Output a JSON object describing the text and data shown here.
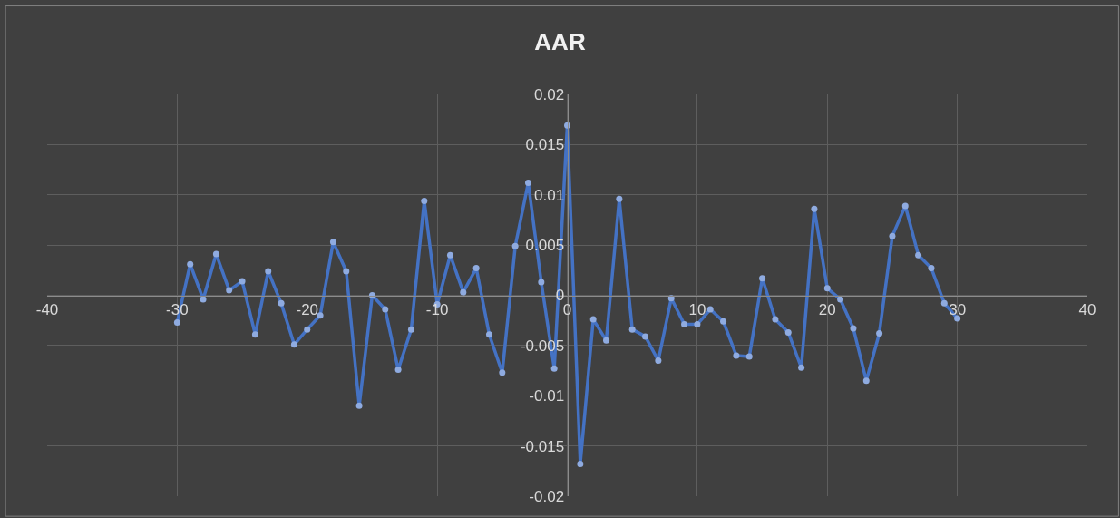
{
  "chart_data": {
    "type": "line",
    "title": "AAR",
    "x": [
      -30,
      -29,
      -28,
      -27,
      -26,
      -25,
      -24,
      -23,
      -22,
      -21,
      -20,
      -19,
      -18,
      -17,
      -16,
      -15,
      -14,
      -13,
      -12,
      -11,
      -10,
      -9,
      -8,
      -7,
      -6,
      -5,
      -4,
      -3,
      -2,
      -1,
      0,
      1,
      2,
      3,
      4,
      5,
      6,
      7,
      8,
      9,
      10,
      11,
      12,
      13,
      14,
      15,
      16,
      17,
      18,
      19,
      20,
      21,
      22,
      23,
      24,
      25,
      26,
      27,
      28,
      29,
      30
    ],
    "series": [
      {
        "color": "#4472c4",
        "values": [
          -0.0027,
          0.0031,
          -0.0004,
          0.0041,
          0.0005,
          0.0014,
          -0.0039,
          0.0024,
          -0.0008,
          -0.0049,
          -0.0034,
          -0.002,
          0.0053,
          0.0024,
          -0.011,
          0.0,
          -0.0014,
          -0.0074,
          -0.0034,
          0.0094,
          -0.0009,
          0.004,
          0.0003,
          0.0027,
          -0.0039,
          -0.0077,
          0.0049,
          0.0112,
          0.0013,
          -0.0073,
          0.0169,
          -0.0168,
          -0.0024,
          -0.0045,
          0.0096,
          -0.0034,
          -0.0041,
          -0.0065,
          -0.0003,
          -0.0029,
          -0.0029,
          -0.0014,
          -0.0026,
          -0.006,
          -0.0061,
          0.0017,
          -0.0024,
          -0.0037,
          -0.0072,
          0.0086,
          0.0007,
          -0.0004,
          -0.0033,
          -0.0085,
          -0.0038,
          0.0059,
          0.0089,
          0.004,
          0.0027,
          -0.0008,
          -0.0023
        ]
      }
    ],
    "xlim": [
      -40,
      40
    ],
    "xticks": [
      -40,
      -30,
      -20,
      -10,
      0,
      10,
      20,
      30,
      40
    ],
    "ylim": [
      -0.02,
      0.02
    ],
    "yticks": [
      -0.02,
      -0.015,
      -0.01,
      -0.005,
      0,
      0.005,
      0.01,
      0.015,
      0.02
    ],
    "grid": true,
    "marker": "circle",
    "line_style": "solid"
  }
}
